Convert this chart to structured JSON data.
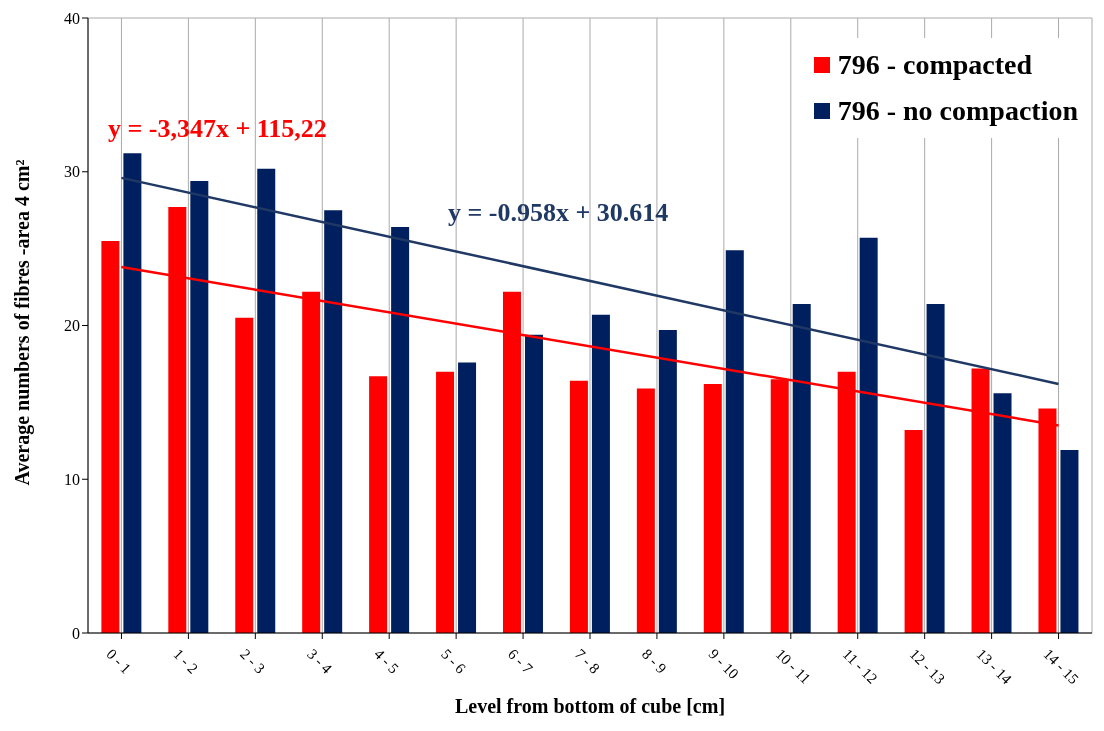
{
  "chart_data": {
    "type": "bar",
    "xlabel": "Level from bottom of cube [cm]",
    "ylabel": "Average numbers of fibres -area 4 cm²",
    "categories": [
      "0 - 1",
      "1 - 2",
      "2 - 3",
      "3 - 4",
      "4 - 5",
      "5 - 6",
      "6 - 7",
      "7 - 8",
      "8 - 9",
      "9 - 10",
      "10 - 11",
      "11 - 12",
      "12 - 13",
      "13 - 14",
      "14 - 15"
    ],
    "series": [
      {
        "name": "796 - compacted",
        "color": "#ff0000",
        "values": [
          25.5,
          27.7,
          20.5,
          22.2,
          16.7,
          17.0,
          22.2,
          16.4,
          15.9,
          16.2,
          16.5,
          17.0,
          13.2,
          17.2,
          14.6
        ]
      },
      {
        "name": "796 - no compaction",
        "color": "#001f5f",
        "values": [
          31.2,
          29.4,
          30.2,
          27.5,
          26.4,
          17.6,
          19.4,
          20.7,
          19.7,
          24.9,
          21.4,
          25.7,
          21.4,
          15.6,
          11.9
        ]
      },
      {
        "type": "line",
        "color": "#ff0000",
        "x": [
          "0 - 1",
          "14 - 15"
        ],
        "values": [
          23.8,
          13.5
        ]
      },
      {
        "type": "line",
        "color": "#1f3864",
        "x": [
          "0 - 1",
          "14 - 15"
        ],
        "values": [
          29.6,
          16.2
        ]
      }
    ],
    "annotations": [
      "y = -3,347x + 115,22",
      "y = -0.958x + 30.614"
    ],
    "ylim": [
      0,
      40
    ],
    "yticks": [
      0,
      10,
      20,
      30,
      40
    ],
    "grid": true,
    "legend": "top right"
  }
}
